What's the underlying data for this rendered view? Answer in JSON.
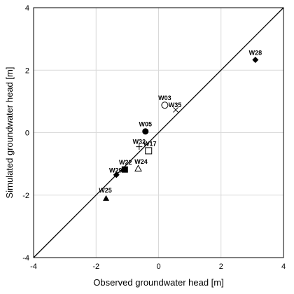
{
  "chart_data": {
    "type": "scatter",
    "title": "",
    "xlabel": "Observed groundwater head [m]",
    "ylabel": "Simulated groundwater head [m]",
    "xlim": [
      -4,
      4
    ],
    "ylim": [
      -4,
      4
    ],
    "xticks": [
      "-4",
      "-2",
      "0",
      "2",
      "4"
    ],
    "yticks": [
      "-4",
      "-2",
      "0",
      "2",
      "4"
    ],
    "grid": true,
    "reference_line": "1:1",
    "points": [
      {
        "label": "W28",
        "x": 3.1,
        "y": 2.33,
        "marker": "diamond-filled"
      },
      {
        "label": "W03",
        "x": 0.2,
        "y": 0.88,
        "marker": "circle-open"
      },
      {
        "label": "W35",
        "x": 0.55,
        "y": 0.73,
        "marker": "x-cross"
      },
      {
        "label": "W05",
        "x": -0.42,
        "y": 0.04,
        "marker": "circle-filled"
      },
      {
        "label": "W32",
        "x": -0.62,
        "y": -0.45,
        "marker": "plus"
      },
      {
        "label": "W17",
        "x": -0.32,
        "y": -0.58,
        "marker": "square-open"
      },
      {
        "label": "W22",
        "x": -1.08,
        "y": -1.18,
        "marker": "square-filled"
      },
      {
        "label": "W24",
        "x": -0.65,
        "y": -1.15,
        "marker": "triangle-open"
      },
      {
        "label": "W29",
        "x": -1.35,
        "y": -1.35,
        "marker": "diamond-filled"
      },
      {
        "label": "W25",
        "x": -1.68,
        "y": -2.1,
        "marker": "triangle-filled"
      }
    ]
  }
}
